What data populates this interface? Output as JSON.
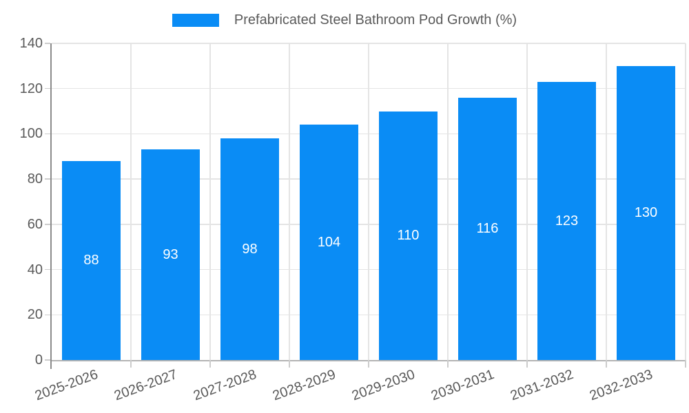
{
  "legend": {
    "label": "Prefabricated Steel Bathroom Pod Growth (%)"
  },
  "chart_data": {
    "type": "bar",
    "title": "Prefabricated Steel Bathroom Pod Growth (%)",
    "categories": [
      "2025-2026",
      "2026-2027",
      "2027-2028",
      "2028-2029",
      "2029-2030",
      "2030-2031",
      "2031-2032",
      "2032-2033"
    ],
    "values": [
      88,
      93,
      98,
      104,
      110,
      116,
      123,
      130
    ],
    "xlabel": "",
    "ylabel": "",
    "ylim": [
      0,
      140
    ],
    "yticks": [
      0,
      20,
      40,
      60,
      80,
      100,
      120,
      140
    ],
    "grid": true,
    "legend_position": "top-center",
    "value_labels": "inside-center",
    "x_label_rotation_deg": -20,
    "colors": {
      "bar": "#0a8cf5",
      "value_label": "#ffffff",
      "axis_text": "#595959",
      "gridline": "#e4e4e4",
      "y_axis_line": "#8a8a8a",
      "x_axis_line": "#b3b3b3"
    }
  }
}
